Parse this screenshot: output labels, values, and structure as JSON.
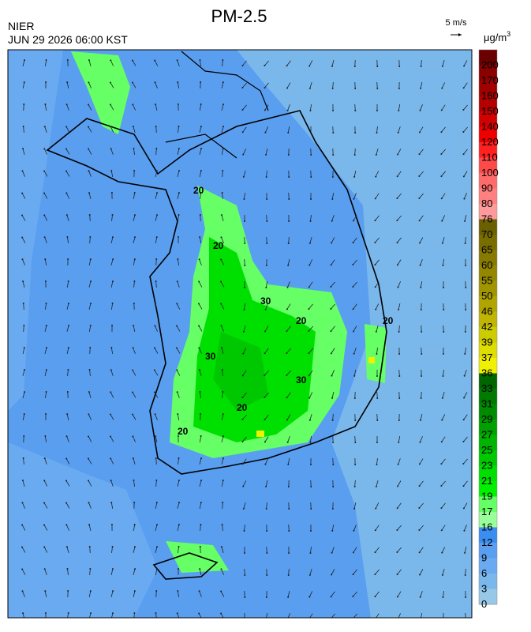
{
  "header": {
    "title": "PM-2.5",
    "agency": "NIER",
    "timestamp": "JUN 29 2026 06:00 KST",
    "wind_scale": "5 m/s",
    "unit": "μg/m",
    "unit_sup": "3"
  },
  "colorbar": {
    "levels": [
      200,
      170,
      160,
      150,
      140,
      120,
      110,
      100,
      90,
      80,
      76,
      70,
      65,
      60,
      55,
      50,
      46,
      42,
      39,
      37,
      36,
      33,
      31,
      29,
      27,
      25,
      23,
      21,
      19,
      17,
      16,
      12,
      9,
      6,
      3,
      0
    ],
    "colors": [
      "#6b0000",
      "#8b0000",
      "#a00000",
      "#b40000",
      "#d20000",
      "#ee0000",
      "#ff2020",
      "#ff4a4a",
      "#ff6a6a",
      "#ff8080",
      "#ff9a9a",
      "#6b6000",
      "#7a6d00",
      "#877a00",
      "#948700",
      "#a09500",
      "#b0a500",
      "#c0b500",
      "#cccc00",
      "#dddd00",
      "#f0f000",
      "#006600",
      "#007a00",
      "#008c00",
      "#00a000",
      "#00b400",
      "#00c800",
      "#00e000",
      "#00f000",
      "#66ff66",
      "#99ff99",
      "#3b8ef0",
      "#5a9ef0",
      "#6aaaf0",
      "#7ab8ec",
      "#98c8e8"
    ]
  },
  "contour_labels": [
    "20",
    "30",
    "20",
    "20",
    "20",
    "30",
    "20",
    "30",
    "20"
  ]
}
